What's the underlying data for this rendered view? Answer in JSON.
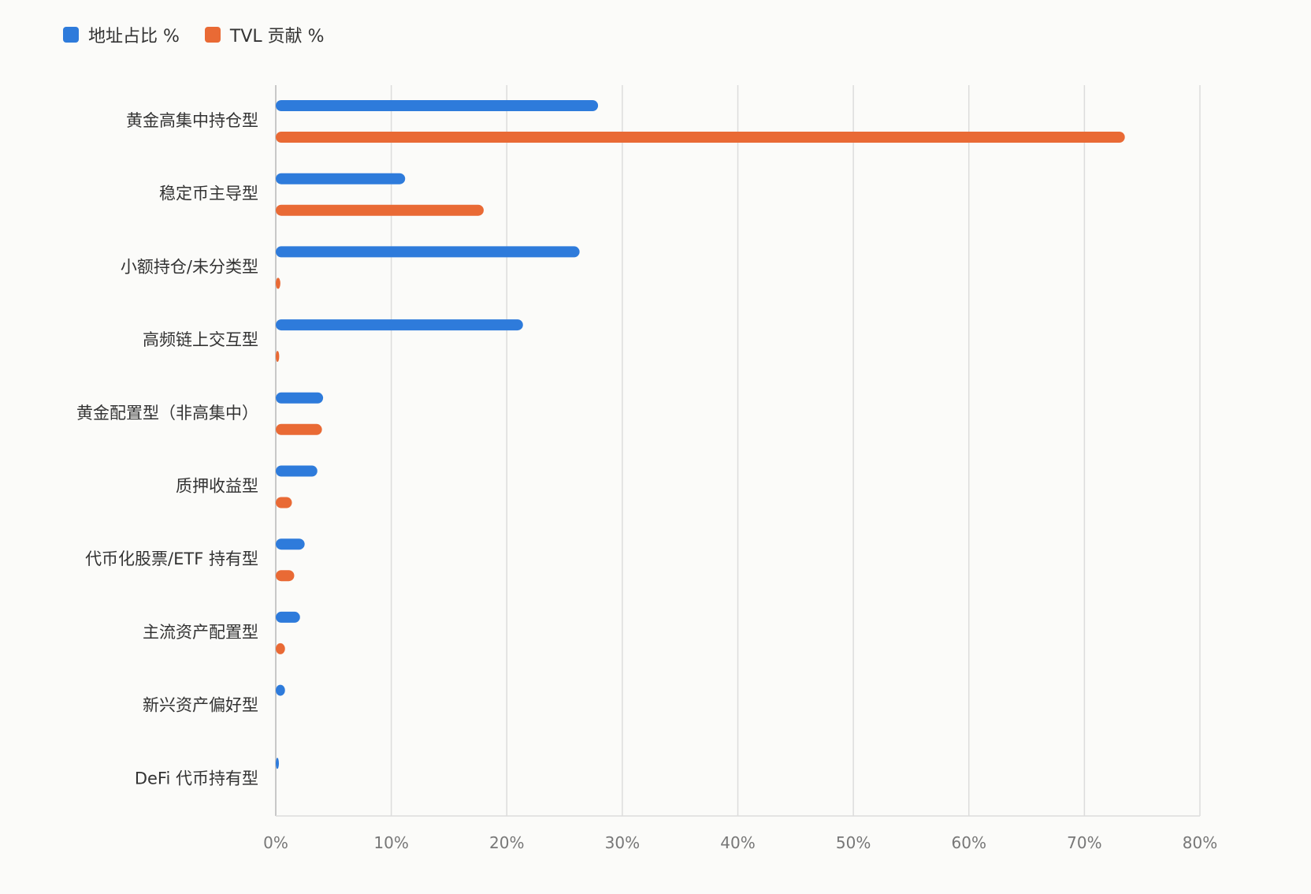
{
  "legend": [
    {
      "label": "地址占比 %",
      "color": "#2e7bdb"
    },
    {
      "label": "TVL 贡献 %",
      "color": "#e96a35"
    }
  ],
  "chart_data": {
    "type": "bar",
    "orientation": "horizontal",
    "categories": [
      "黄金高集中持仓型",
      "稳定币主导型",
      "小额持仓/未分类型",
      "高频链上交互型",
      "黄金配置型（非高集中）",
      "质押收益型",
      "代币化股票/ETF 持有型",
      "主流资产配置型",
      "新兴资产偏好型",
      "DeFi 代币持有型"
    ],
    "series": [
      {
        "name": "地址占比 %",
        "color": "#2e7bdb",
        "values": [
          27.9,
          11.2,
          26.3,
          21.4,
          4.1,
          3.6,
          2.5,
          2.1,
          0.8,
          0.1
        ]
      },
      {
        "name": "TVL 贡献 %",
        "color": "#e96a35",
        "values": [
          73.5,
          18.0,
          0.4,
          0.3,
          4.0,
          1.4,
          1.6,
          0.8,
          0.0,
          0.0
        ]
      }
    ],
    "xlim": [
      0,
      80
    ],
    "xticks": [
      "0%",
      "10%",
      "20%",
      "30%",
      "40%",
      "50%",
      "60%",
      "70%",
      "80%"
    ],
    "grid": true,
    "legend_position": "top-left"
  }
}
